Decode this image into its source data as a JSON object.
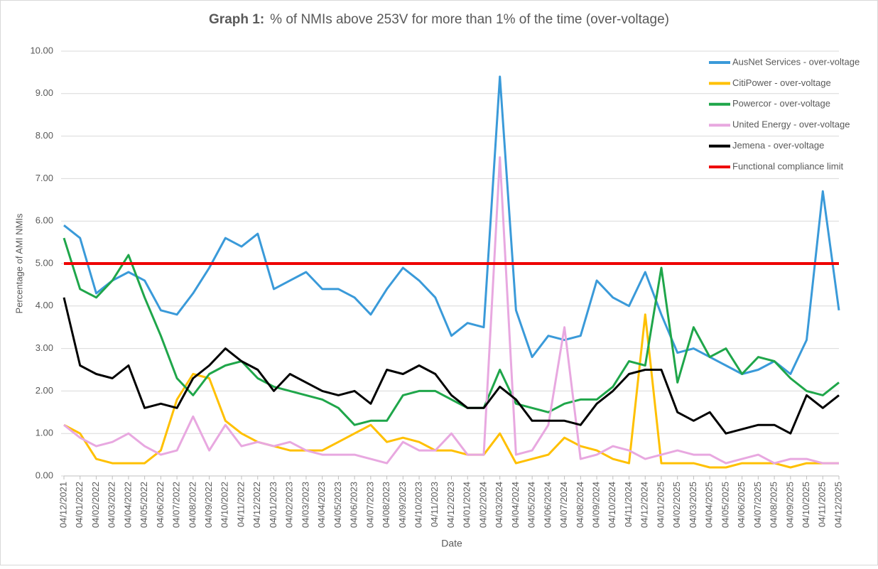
{
  "chart_data": {
    "type": "line",
    "title_prefix": "Graph 1:",
    "title": "% of NMIs above 253V for more than 1% of the time (over-voltage)",
    "x_label": "Date",
    "y_label": "Percentage of AMI NMIs",
    "categories": [
      "04/12/2021",
      "04/01/2022",
      "04/02/2022",
      "04/03/2022",
      "04/04/2022",
      "04/05/2022",
      "04/06/2022",
      "04/07/2022",
      "04/08/2022",
      "04/09/2022",
      "04/10/2022",
      "04/11/2022",
      "04/12/2022",
      "04/01/2023",
      "04/02/2023",
      "04/03/2023",
      "04/04/2023",
      "04/05/2023",
      "04/06/2023",
      "04/07/2023",
      "04/08/2023",
      "04/09/2023",
      "04/10/2023",
      "04/11/2023",
      "04/12/2023",
      "04/01/2024",
      "04/02/2024",
      "04/03/2024",
      "04/04/2024",
      "04/05/2024",
      "04/06/2024",
      "04/07/2024",
      "04/08/2024",
      "04/09/2024",
      "04/10/2024",
      "04/11/2024",
      "04/12/2024",
      "04/01/2025",
      "04/02/2025",
      "04/03/2025",
      "04/04/2025",
      "04/05/2025",
      "04/06/2025",
      "04/07/2025",
      "04/08/2025",
      "04/09/2025",
      "04/10/2025",
      "04/11/2025",
      "04/12/2025"
    ],
    "ylim": [
      0,
      10
    ],
    "yticks": [
      {
        "value": 0,
        "label": "0.00"
      },
      {
        "value": 1,
        "label": "1.00"
      },
      {
        "value": 2,
        "label": "2.00"
      },
      {
        "value": 3,
        "label": "3.00"
      },
      {
        "value": 4,
        "label": "4.00"
      },
      {
        "value": 5,
        "label": "5.00"
      },
      {
        "value": 6,
        "label": "6.00"
      },
      {
        "value": 7,
        "label": "7.00"
      },
      {
        "value": 8,
        "label": "8.00"
      },
      {
        "value": 9,
        "label": "9.00"
      },
      {
        "value": 10,
        "label": "10.00"
      }
    ],
    "grid": true,
    "legend": "upper right",
    "series": [
      {
        "name": "AusNet Services - over-voltage",
        "color": "#3a9ad9",
        "values": [
          5.9,
          5.6,
          4.3,
          4.6,
          4.8,
          4.6,
          3.9,
          3.8,
          4.3,
          4.9,
          5.6,
          5.4,
          5.7,
          4.4,
          4.6,
          4.8,
          4.4,
          4.4,
          4.2,
          3.8,
          4.4,
          4.9,
          4.6,
          4.2,
          3.3,
          3.6,
          3.5,
          9.4,
          3.9,
          2.8,
          3.3,
          3.2,
          3.3,
          4.6,
          4.2,
          4.0,
          4.8,
          3.8,
          2.9,
          3.0,
          2.8,
          2.6,
          2.4,
          2.5,
          2.7,
          2.4,
          3.2,
          6.7,
          3.9
        ]
      },
      {
        "name": "CitiPower - over-voltage",
        "color": "#ffc000",
        "values": [
          1.2,
          1.0,
          0.4,
          0.3,
          0.3,
          0.3,
          0.6,
          1.8,
          2.4,
          2.3,
          1.3,
          1.0,
          0.8,
          0.7,
          0.6,
          0.6,
          0.6,
          0.8,
          1.0,
          1.2,
          0.8,
          0.9,
          0.8,
          0.6,
          0.6,
          0.5,
          0.5,
          1.0,
          0.3,
          0.4,
          0.5,
          0.9,
          0.7,
          0.6,
          0.4,
          0.3,
          3.8,
          0.3,
          0.3,
          0.3,
          0.2,
          0.2,
          0.3,
          0.3,
          0.3,
          0.2,
          0.3,
          0.3,
          0.3
        ]
      },
      {
        "name": "Powercor - over-voltage",
        "color": "#1fa64a",
        "values": [
          5.6,
          4.4,
          4.2,
          4.6,
          5.2,
          4.2,
          3.3,
          2.3,
          1.9,
          2.4,
          2.6,
          2.7,
          2.3,
          2.1,
          2.0,
          1.9,
          1.8,
          1.6,
          1.2,
          1.3,
          1.3,
          1.9,
          2.0,
          2.0,
          1.8,
          1.6,
          1.6,
          2.5,
          1.7,
          1.6,
          1.5,
          1.7,
          1.8,
          1.8,
          2.1,
          2.7,
          2.6,
          4.9,
          2.2,
          3.5,
          2.8,
          3.0,
          2.4,
          2.8,
          2.7,
          2.3,
          2.0,
          1.9,
          2.2
        ]
      },
      {
        "name": "United Energy - over-voltage",
        "color": "#e8a8e0",
        "values": [
          1.2,
          0.9,
          0.7,
          0.8,
          1.0,
          0.7,
          0.5,
          0.6,
          1.4,
          0.6,
          1.2,
          0.7,
          0.8,
          0.7,
          0.8,
          0.6,
          0.5,
          0.5,
          0.5,
          0.4,
          0.3,
          0.8,
          0.6,
          0.6,
          1.0,
          0.5,
          0.5,
          7.5,
          0.5,
          0.6,
          1.2,
          3.5,
          0.4,
          0.5,
          0.7,
          0.6,
          0.4,
          0.5,
          0.6,
          0.5,
          0.5,
          0.3,
          0.4,
          0.5,
          0.3,
          0.4,
          0.4,
          0.3,
          0.3
        ]
      },
      {
        "name": "Jemena - over-voltage",
        "color": "#000000",
        "values": [
          4.2,
          2.6,
          2.4,
          2.3,
          2.6,
          1.6,
          1.7,
          1.6,
          2.3,
          2.6,
          3.0,
          2.7,
          2.5,
          2.0,
          2.4,
          2.2,
          2.0,
          1.9,
          2.0,
          1.7,
          2.5,
          2.4,
          2.6,
          2.4,
          1.9,
          1.6,
          1.6,
          2.1,
          1.8,
          1.3,
          1.3,
          1.3,
          1.2,
          1.7,
          2.0,
          2.4,
          2.5,
          2.5,
          1.5,
          1.3,
          1.5,
          1.0,
          1.1,
          1.2,
          1.2,
          1.0,
          1.9,
          1.6,
          1.9
        ]
      }
    ],
    "limit": {
      "name": "Functional compliance limit",
      "value": 5,
      "color": "#ee0000"
    }
  }
}
